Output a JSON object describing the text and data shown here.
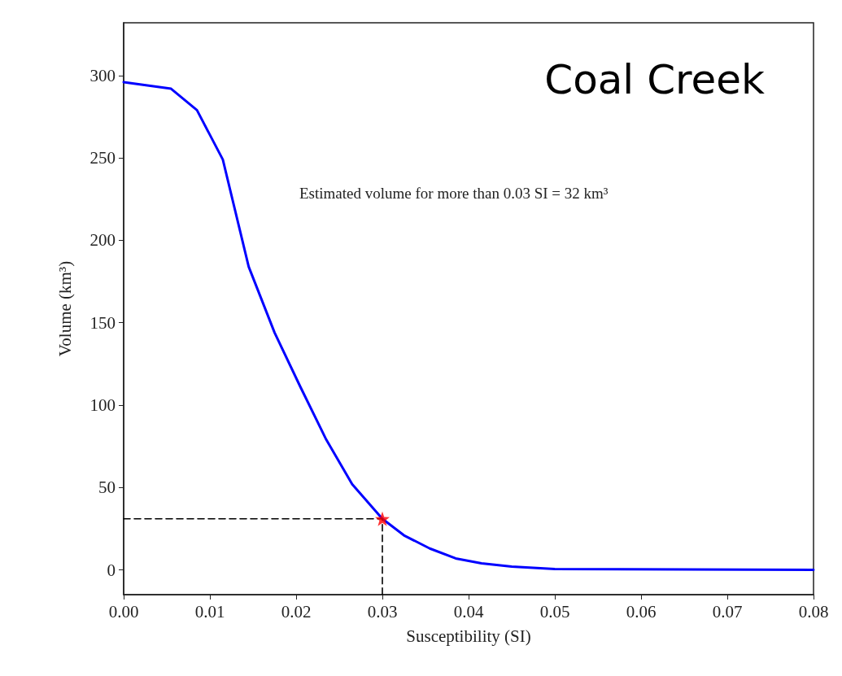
{
  "chart_data": {
    "type": "line",
    "title": "Coal Creek",
    "xlabel": "Susceptibility (SI)",
    "ylabel": "Volume (km³)",
    "annotations": [
      "Estimated volume for more than 0.03 SI = 32 km³"
    ],
    "xlim": [
      0,
      0.08
    ],
    "xticks": [
      {
        "value": 0,
        "label": "0.00"
      },
      0.01,
      0.02,
      0.03,
      0.04,
      0.05,
      0.06,
      0.07,
      0.08
    ],
    "ylim": [
      -15,
      332
    ],
    "yticks": [
      0,
      50,
      100,
      150,
      200,
      250,
      300
    ],
    "grid": false,
    "series": [
      {
        "color": "#0000ff",
        "marker": "none",
        "line_style": "solid",
        "x": [
          0,
          0.0055,
          0.0085,
          0.0115,
          0.0145,
          0.0175,
          0.0205,
          0.0235,
          0.0265,
          0.03,
          0.0325,
          0.0355,
          0.0385,
          0.0415,
          0.045,
          0.05,
          0.08
        ],
        "values": [
          296,
          292,
          279,
          249,
          184,
          144,
          111,
          79,
          52,
          31,
          21,
          13,
          7,
          4,
          2,
          0.5,
          0
        ]
      },
      {
        "type": "line",
        "color": "#000000",
        "marker": "none",
        "line_style": "dashed",
        "x": [
          0,
          0.03,
          0.03
        ],
        "values": [
          31,
          31,
          -15
        ]
      },
      {
        "type": "scatter",
        "color": "#ff0000",
        "marker": "star",
        "x": [
          0.03
        ],
        "values": [
          31
        ]
      }
    ]
  }
}
